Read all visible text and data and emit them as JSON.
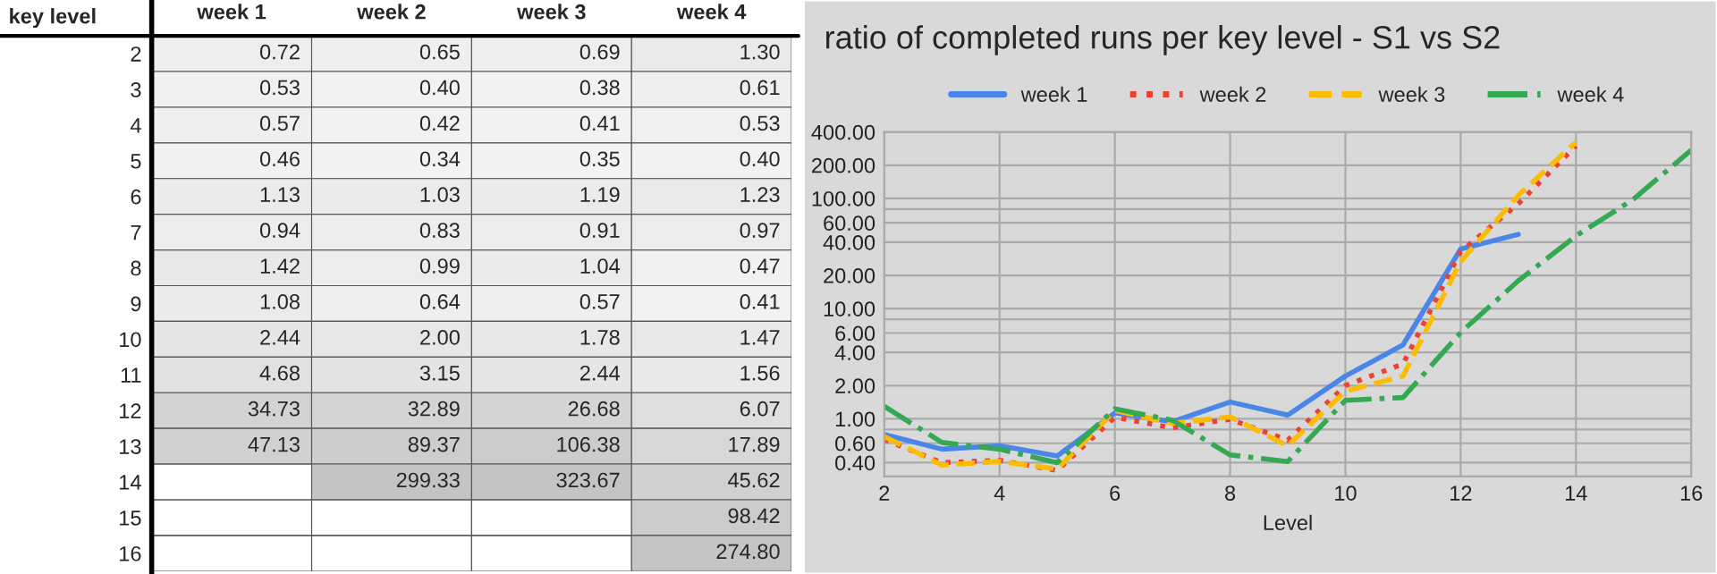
{
  "chart_data": [
    {
      "type": "heatmap",
      "ylabel": "key level",
      "categories": [
        "week 1",
        "week 2",
        "week 3",
        "week 4"
      ],
      "y_categories": [
        "2",
        "3",
        "4",
        "5",
        "6",
        "7",
        "8",
        "9",
        "10",
        "11",
        "12",
        "13",
        "14",
        "15",
        "16"
      ],
      "cells": [
        [
          0.72,
          0.65,
          0.69,
          1.3
        ],
        [
          0.53,
          0.4,
          0.38,
          0.61
        ],
        [
          0.57,
          0.42,
          0.41,
          0.53
        ],
        [
          0.46,
          0.34,
          0.35,
          0.4
        ],
        [
          1.13,
          1.03,
          1.19,
          1.23
        ],
        [
          0.94,
          0.83,
          0.91,
          0.97
        ],
        [
          1.42,
          0.99,
          1.04,
          0.47
        ],
        [
          1.08,
          0.64,
          0.57,
          0.41
        ],
        [
          2.44,
          2.0,
          1.78,
          1.47
        ],
        [
          4.68,
          3.15,
          2.44,
          1.56
        ],
        [
          34.73,
          32.89,
          26.68,
          6.07
        ],
        [
          47.13,
          89.37,
          106.38,
          17.89
        ],
        [
          null,
          299.33,
          323.67,
          45.62
        ],
        [
          null,
          null,
          null,
          98.42
        ],
        [
          null,
          null,
          null,
          274.8
        ]
      ],
      "cell_labels": [
        [
          "0.72",
          "0.65",
          "0.69",
          "1.30"
        ],
        [
          "0.53",
          "0.40",
          "0.38",
          "0.61"
        ],
        [
          "0.57",
          "0.42",
          "0.41",
          "0.53"
        ],
        [
          "0.46",
          "0.34",
          "0.35",
          "0.40"
        ],
        [
          "1.13",
          "1.03",
          "1.19",
          "1.23"
        ],
        [
          "0.94",
          "0.83",
          "0.91",
          "0.97"
        ],
        [
          "1.42",
          "0.99",
          "1.04",
          "0.47"
        ],
        [
          "1.08",
          "0.64",
          "0.57",
          "0.41"
        ],
        [
          "2.44",
          "2.00",
          "1.78",
          "1.47"
        ],
        [
          "4.68",
          "3.15",
          "2.44",
          "1.56"
        ],
        [
          "34.73",
          "32.89",
          "26.68",
          "6.07"
        ],
        [
          "47.13",
          "89.37",
          "106.38",
          "17.89"
        ],
        [
          null,
          "299.33",
          "323.67",
          "45.62"
        ],
        [
          null,
          null,
          null,
          "98.42"
        ],
        [
          null,
          null,
          null,
          "274.80"
        ]
      ]
    },
    {
      "type": "line",
      "title": "ratio of completed runs per key level - S1 vs S2",
      "xlabel": "Level",
      "series": [
        {
          "name": "week 1",
          "color": "#4a86e8",
          "line_style": "solid",
          "x": [
            2,
            3,
            4,
            5,
            6,
            7,
            8,
            9,
            10,
            11,
            12,
            13
          ],
          "values": [
            0.72,
            0.53,
            0.57,
            0.46,
            1.13,
            0.94,
            1.42,
            1.08,
            2.44,
            4.68,
            34.73,
            47.13
          ]
        },
        {
          "name": "week 2",
          "color": "#ea4335",
          "line_style": "dotted",
          "x": [
            2,
            3,
            4,
            5,
            6,
            7,
            8,
            9,
            10,
            11,
            12,
            13,
            14
          ],
          "values": [
            0.65,
            0.4,
            0.42,
            0.34,
            1.03,
            0.83,
            0.99,
            0.64,
            2.0,
            3.15,
            32.89,
            89.37,
            299.33
          ]
        },
        {
          "name": "week 3",
          "color": "#fbbc04",
          "line_style": "dashed",
          "x": [
            2,
            3,
            4,
            5,
            6,
            7,
            8,
            9,
            10,
            11,
            12,
            13,
            14
          ],
          "values": [
            0.69,
            0.38,
            0.41,
            0.35,
            1.19,
            0.91,
            1.04,
            0.57,
            1.78,
            2.44,
            26.68,
            106.38,
            323.67
          ]
        },
        {
          "name": "week 4",
          "color": "#34a853",
          "line_style": "dashdot",
          "x": [
            2,
            3,
            4,
            5,
            6,
            7,
            8,
            9,
            10,
            11,
            12,
            13,
            14,
            15,
            16
          ],
          "values": [
            1.3,
            0.61,
            0.53,
            0.4,
            1.23,
            0.97,
            0.47,
            0.41,
            1.47,
            1.56,
            6.07,
            17.89,
            45.62,
            98.42,
            274.8
          ]
        }
      ],
      "log": "y",
      "xlim": [
        2,
        16
      ],
      "xticks": [
        2,
        4,
        6,
        8,
        10,
        12,
        14,
        16
      ],
      "ylim": [
        0.3,
        400
      ],
      "yticks": [
        {
          "value": 0.4,
          "label": "0.40"
        },
        {
          "value": 0.6,
          "label": "0.60"
        },
        {
          "value": 0.8,
          "label": null
        },
        {
          "value": 1,
          "label": "1.00"
        },
        {
          "value": 2,
          "label": "2.00"
        },
        {
          "value": 4,
          "label": "4.00"
        },
        {
          "value": 6,
          "label": "6.00"
        },
        {
          "value": 8,
          "label": null
        },
        {
          "value": 10,
          "label": "10.00"
        },
        {
          "value": 20,
          "label": "20.00"
        },
        {
          "value": 40,
          "label": "40.00"
        },
        {
          "value": 60,
          "label": "60.00"
        },
        {
          "value": 80,
          "label": null
        },
        {
          "value": 100,
          "label": "100.00"
        },
        {
          "value": 200,
          "label": "200.00"
        },
        {
          "value": 400,
          "label": "400.00"
        }
      ],
      "grid": true,
      "legend": "top",
      "marker": "none"
    }
  ]
}
